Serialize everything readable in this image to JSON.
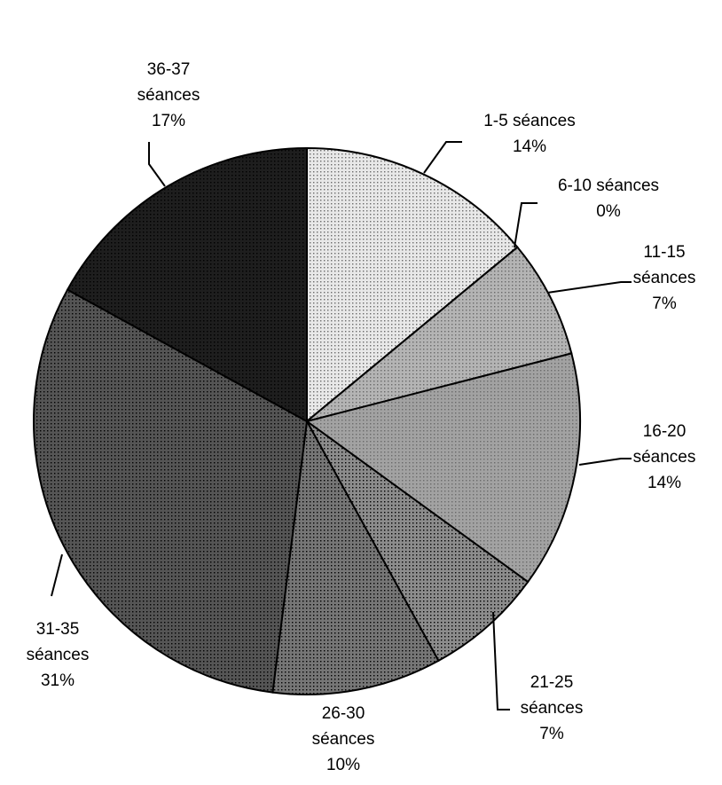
{
  "chart_data": {
    "type": "pie",
    "title": "",
    "unit": "%",
    "slices": [
      {
        "label_lines": [
          "1-5 séances",
          "14%"
        ],
        "value": 14,
        "color": "#e8e8e8"
      },
      {
        "label_lines": [
          "6-10 séances",
          "0%"
        ],
        "value": 0,
        "color": "#d0d0d0"
      },
      {
        "label_lines": [
          "11-15",
          "séances",
          "7%"
        ],
        "value": 7,
        "color": "#b4b4b4"
      },
      {
        "label_lines": [
          "16-20",
          "séances",
          "14%"
        ],
        "value": 14,
        "color": "#a2a2a2"
      },
      {
        "label_lines": [
          "21-25",
          "séances",
          "7%"
        ],
        "value": 7,
        "color": "#8c8c8c"
      },
      {
        "label_lines": [
          "26-30",
          "séances",
          "10%"
        ],
        "value": 10,
        "color": "#767676"
      },
      {
        "label_lines": [
          "31-35",
          "séances",
          "31%"
        ],
        "value": 31,
        "color": "#555555"
      },
      {
        "label_lines": [
          "36-37",
          "séances",
          "17%"
        ],
        "value": 17,
        "color": "#1e1e1e"
      }
    ]
  }
}
